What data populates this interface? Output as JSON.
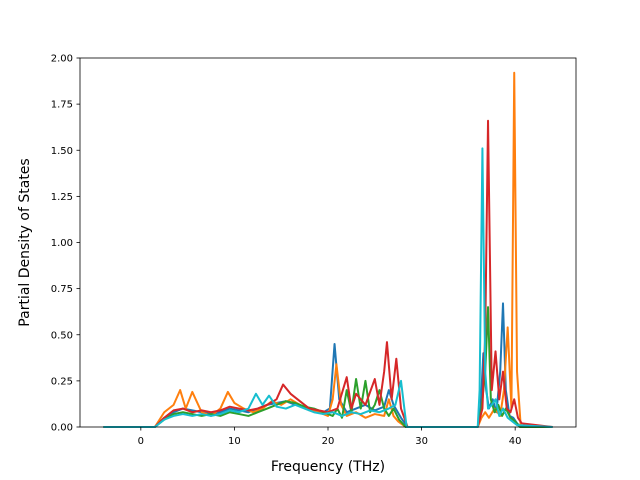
{
  "chart_data": {
    "type": "line",
    "title": "",
    "xlabel": "Frequency (THz)",
    "ylabel": "Partial Density of States",
    "xlim": [
      -6.5,
      46.5
    ],
    "ylim": [
      0,
      2.0
    ],
    "xticks": [
      0,
      10,
      20,
      30,
      40
    ],
    "yticks": [
      0.0,
      0.25,
      0.5,
      0.75,
      1.0,
      1.25,
      1.5,
      1.75,
      2.0
    ],
    "ytick_labels": [
      "0.00",
      "0.25",
      "0.50",
      "0.75",
      "1.00",
      "1.25",
      "1.50",
      "1.75",
      "2.00"
    ],
    "grid": false,
    "legend": "none",
    "series": [
      {
        "color": "#1f77b4",
        "x": [
          -4,
          1.5,
          2.5,
          3.5,
          4.5,
          5.5,
          6.5,
          7.5,
          8.5,
          9.5,
          10.5,
          11.5,
          12.5,
          13.5,
          14.5,
          15.5,
          16.5,
          17.5,
          18.5,
          19.5,
          20.2,
          20.7,
          21.2,
          22,
          23,
          24,
          25,
          26,
          26.5,
          27,
          27.8,
          28.5,
          36,
          36.3,
          36.6,
          36.9,
          37.2,
          37.6,
          38,
          38.4,
          38.7,
          39,
          39.4,
          39.8,
          40.2,
          40.6,
          44
        ],
        "y": [
          0,
          0,
          0.05,
          0.08,
          0.1,
          0.09,
          0.08,
          0.07,
          0.08,
          0.1,
          0.09,
          0.08,
          0.1,
          0.12,
          0.13,
          0.14,
          0.12,
          0.11,
          0.09,
          0.08,
          0.1,
          0.45,
          0.15,
          0.08,
          0.1,
          0.12,
          0.09,
          0.11,
          0.2,
          0.12,
          0.05,
          0,
          0,
          0.1,
          0.4,
          0.2,
          0.1,
          0.15,
          0.08,
          0.3,
          0.67,
          0.2,
          0.06,
          0.05,
          0.02,
          0,
          0
        ]
      },
      {
        "color": "#ff7f0e",
        "x": [
          -4,
          1.5,
          2.5,
          3.5,
          4.2,
          4.8,
          5.5,
          6.5,
          7.5,
          8.5,
          9.3,
          10,
          11,
          12,
          13,
          14,
          15,
          16,
          17,
          18,
          19,
          20,
          20.5,
          20.9,
          21.4,
          22,
          23,
          24,
          25,
          26,
          26.5,
          27,
          27.5,
          28.3,
          36,
          36.4,
          36.8,
          37.2,
          37.8,
          38.4,
          38.8,
          39.2,
          39.6,
          39.9,
          40.2,
          40.6,
          44
        ],
        "y": [
          0,
          0,
          0.08,
          0.12,
          0.2,
          0.1,
          0.19,
          0.08,
          0.06,
          0.1,
          0.19,
          0.13,
          0.1,
          0.08,
          0.1,
          0.14,
          0.12,
          0.15,
          0.12,
          0.09,
          0.08,
          0.06,
          0.15,
          0.34,
          0.12,
          0.06,
          0.08,
          0.05,
          0.07,
          0.06,
          0.15,
          0.06,
          0.03,
          0,
          0,
          0.05,
          0.08,
          0.05,
          0.1,
          0.06,
          0.2,
          0.54,
          0.1,
          1.92,
          0.3,
          0,
          0
        ]
      },
      {
        "color": "#2ca02c",
        "x": [
          -4,
          1.5,
          2.5,
          3.5,
          4.5,
          5.5,
          6.5,
          7.5,
          8.5,
          9.5,
          10.5,
          11.5,
          12.5,
          13.5,
          14.5,
          15.5,
          16.5,
          17.5,
          18.5,
          19.5,
          20.5,
          21,
          21.5,
          22,
          22.5,
          23,
          23.5,
          24,
          24.5,
          25,
          25.5,
          26,
          26.5,
          27,
          27.6,
          28.3,
          36,
          36.4,
          36.8,
          37.1,
          37.4,
          37.8,
          38.2,
          38.6,
          39,
          39.5,
          40,
          40.5,
          44
        ],
        "y": [
          0,
          0,
          0.04,
          0.07,
          0.08,
          0.07,
          0.06,
          0.07,
          0.06,
          0.08,
          0.07,
          0.06,
          0.08,
          0.1,
          0.12,
          0.14,
          0.13,
          0.11,
          0.1,
          0.08,
          0.06,
          0.1,
          0.05,
          0.2,
          0.08,
          0.26,
          0.1,
          0.25,
          0.08,
          0.12,
          0.2,
          0.1,
          0.06,
          0.1,
          0.04,
          0,
          0,
          0.1,
          0.3,
          0.65,
          0.15,
          0.08,
          0.12,
          0.06,
          0.1,
          0.05,
          0.03,
          0,
          0
        ]
      },
      {
        "color": "#d62728",
        "x": [
          -4,
          1.5,
          2.5,
          3.5,
          4.5,
          5.5,
          6.5,
          7.5,
          8.5,
          9.5,
          10.5,
          11.5,
          12.5,
          13.5,
          14.5,
          15.2,
          16,
          17,
          18,
          19,
          20,
          21,
          22,
          22.5,
          23,
          24,
          25,
          25.5,
          26,
          26.3,
          26.8,
          27.3,
          27.8,
          28.5,
          36,
          36.5,
          36.8,
          37.1,
          37.5,
          37.9,
          38.3,
          38.7,
          39.1,
          39.5,
          39.9,
          40.3,
          40.7,
          44
        ],
        "y": [
          0,
          0,
          0.05,
          0.09,
          0.1,
          0.08,
          0.09,
          0.08,
          0.09,
          0.11,
          0.1,
          0.09,
          0.1,
          0.12,
          0.15,
          0.23,
          0.18,
          0.14,
          0.1,
          0.09,
          0.08,
          0.1,
          0.27,
          0.1,
          0.18,
          0.12,
          0.26,
          0.12,
          0.3,
          0.46,
          0.15,
          0.37,
          0.1,
          0,
          0,
          0.1,
          0.5,
          1.66,
          0.2,
          0.41,
          0.15,
          0.3,
          0.1,
          0.08,
          0.15,
          0.05,
          0.02,
          0
        ]
      },
      {
        "color": "#17becf",
        "x": [
          -4,
          1.5,
          2.5,
          3.5,
          4.5,
          5.5,
          6.5,
          7.5,
          8.5,
          9.5,
          10.5,
          11.5,
          12.3,
          13,
          13.7,
          14.5,
          15.5,
          16.5,
          17.5,
          18.5,
          19.5,
          20.5,
          21.5,
          22.5,
          23.5,
          24.5,
          25.5,
          26.5,
          27.2,
          27.8,
          28.4,
          36,
          36.2,
          36.5,
          36.8,
          37.1,
          37.5,
          37.9,
          38.3,
          38.7,
          39.2,
          39.7,
          40.2,
          44
        ],
        "y": [
          0,
          0,
          0.04,
          0.06,
          0.07,
          0.06,
          0.07,
          0.06,
          0.07,
          0.09,
          0.08,
          0.1,
          0.18,
          0.12,
          0.17,
          0.11,
          0.1,
          0.12,
          0.1,
          0.08,
          0.07,
          0.08,
          0.06,
          0.08,
          0.07,
          0.09,
          0.08,
          0.1,
          0.12,
          0.25,
          0,
          0,
          0.2,
          1.51,
          0.3,
          0.1,
          0.12,
          0.15,
          0.06,
          0.1,
          0.05,
          0.03,
          0.01,
          0
        ]
      }
    ]
  }
}
